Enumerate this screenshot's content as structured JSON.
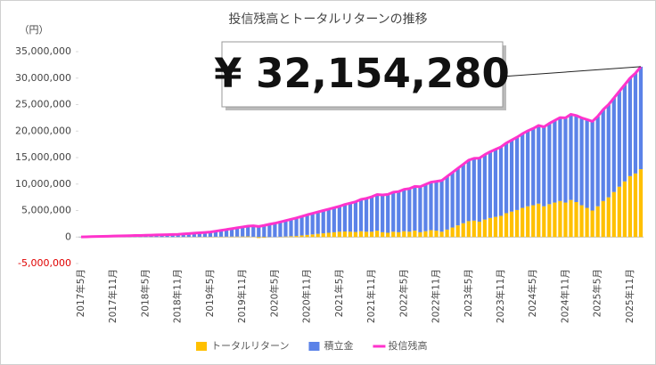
{
  "chart_data": {
    "type": "stacked-bar-line",
    "title": "投信残高とトータルリターンの推移",
    "y_unit": "（円）",
    "annotation": "¥ 32,154,280",
    "categories": [
      "2017年5月",
      null,
      null,
      null,
      null,
      null,
      "2017年11月",
      null,
      null,
      null,
      null,
      null,
      "2018年5月",
      null,
      null,
      null,
      null,
      null,
      "2018年11月",
      null,
      null,
      null,
      null,
      null,
      "2019年5月",
      null,
      null,
      null,
      null,
      null,
      "2019年11月",
      null,
      null,
      null,
      null,
      null,
      "2020年5月",
      null,
      null,
      null,
      null,
      null,
      "2020年11月",
      null,
      null,
      null,
      null,
      null,
      "2021年5月",
      null,
      null,
      null,
      null,
      null,
      "2021年11月",
      null,
      null,
      null,
      null,
      null,
      "2022年5月",
      null,
      null,
      null,
      null,
      null,
      "2022年11月",
      null,
      null,
      null,
      null,
      null,
      "2023年5月",
      null,
      null,
      null,
      null,
      null,
      "2023年11月",
      null,
      null,
      null,
      null,
      null,
      "2024年5月",
      null,
      null,
      null,
      null,
      null,
      "2024年11月",
      null,
      null,
      null,
      null,
      null,
      "2025年5月",
      null,
      null,
      null,
      null,
      null,
      "2025年11月",
      null,
      null
    ],
    "series": [
      {
        "name": "トータルリターン",
        "color": "#FFC000",
        "kind": "bar",
        "values": [
          0,
          0,
          0,
          0,
          5000,
          5000,
          5000,
          10000,
          5000,
          10000,
          10000,
          5000,
          10000,
          10000,
          5000,
          0,
          -5000,
          0,
          10000,
          15000,
          20000,
          25000,
          30000,
          35000,
          40000,
          50000,
          60000,
          70000,
          80000,
          90000,
          100000,
          120000,
          50000,
          -200000,
          -150000,
          -50000,
          0,
          50000,
          100000,
          150000,
          200000,
          300000,
          400000,
          500000,
          600000,
          700000,
          800000,
          900000,
          1000000,
          1050000,
          1000000,
          950000,
          1100000,
          1000000,
          1000000,
          1200000,
          900000,
          800000,
          1000000,
          900000,
          1100000,
          1000000,
          1200000,
          900000,
          1100000,
          1300000,
          1200000,
          1000000,
          1400000,
          1800000,
          2200000,
          2600000,
          3000000,
          3100000,
          2900000,
          3300000,
          3600000,
          3800000,
          4000000,
          4500000,
          4800000,
          5100000,
          5500000,
          5800000,
          6000000,
          6300000,
          5800000,
          6200000,
          6500000,
          6800000,
          6500000,
          7000000,
          6600000,
          6000000,
          5500000,
          5000000,
          5800000,
          6800000,
          7500000,
          8500000,
          9500000,
          10500000,
          11500000,
          12000000,
          12804280
        ]
      },
      {
        "name": "積立金",
        "color": "#5B82E8",
        "kind": "bar",
        "values": [
          25000,
          50000,
          75000,
          100000,
          125000,
          150000,
          175000,
          200000,
          225000,
          250000,
          275000,
          300000,
          325000,
          355000,
          385000,
          415000,
          445000,
          475000,
          505000,
          571000,
          637000,
          703000,
          769000,
          835000,
          900000,
          1050000,
          1200000,
          1350000,
          1500000,
          1650000,
          1800000,
          1933000,
          2066000,
          2200000,
          2333000,
          2466000,
          2600000,
          2800000,
          3000000,
          3200000,
          3400000,
          3600000,
          3800000,
          3967000,
          4133000,
          4300000,
          4467000,
          4633000,
          4800000,
          5100000,
          5400000,
          5700000,
          6000000,
          6300000,
          6600000,
          6817000,
          7033000,
          7250000,
          7467000,
          7683000,
          7900000,
          8133000,
          8367000,
          8600000,
          8833000,
          9067000,
          9300000,
          9667000,
          10033000,
          10400000,
          10767000,
          11133000,
          11500000,
          11750000,
          12000000,
          12250000,
          12500000,
          12750000,
          13000000,
          13250000,
          13500000,
          13750000,
          14000000,
          14250000,
          14500000,
          14750000,
          15000000,
          15250000,
          15500000,
          15750000,
          16000000,
          16167000,
          16333000,
          16500000,
          16667000,
          16833000,
          17000000,
          17250000,
          17500000,
          17750000,
          18000000,
          18250000,
          18500000,
          18925000,
          19350000
        ]
      },
      {
        "name": "投信残高",
        "color": "#FF33CC",
        "kind": "line",
        "values": [
          25000,
          50000,
          75000,
          100000,
          130000,
          155000,
          180000,
          210000,
          230000,
          260000,
          285000,
          305000,
          335000,
          365000,
          390000,
          415000,
          440000,
          475000,
          515000,
          586000,
          657000,
          728000,
          799000,
          870000,
          940000,
          1100000,
          1260000,
          1420000,
          1580000,
          1740000,
          1900000,
          2053000,
          2116000,
          2000000,
          2183000,
          2416000,
          2600000,
          2850000,
          3100000,
          3350000,
          3600000,
          3900000,
          4200000,
          4467000,
          4733000,
          5000000,
          5267000,
          5533000,
          5800000,
          6150000,
          6400000,
          6650000,
          7100000,
          7300000,
          7600000,
          8017000,
          7933000,
          8050000,
          8467000,
          8583000,
          9000000,
          9133000,
          9567000,
          9500000,
          9933000,
          10367000,
          10500000,
          10667000,
          11433000,
          12200000,
          12967000,
          13733000,
          14500000,
          14850000,
          14900000,
          15550000,
          16100000,
          16550000,
          17000000,
          17750000,
          18300000,
          18850000,
          19500000,
          20050000,
          20500000,
          21050000,
          20800000,
          21450000,
          22000000,
          22550000,
          22500000,
          23167000,
          22933000,
          22500000,
          22167000,
          21833000,
          22800000,
          24050000,
          25000000,
          26250000,
          27500000,
          28750000,
          30000000,
          30925000,
          32154280
        ]
      }
    ],
    "ylim": [
      -5000000,
      35000000
    ],
    "yticks": [
      {
        "value": -5000000,
        "label": "-5,000,000"
      },
      0,
      {
        "value": 5000000,
        "label": "5,000,000"
      },
      {
        "value": 10000000,
        "label": "10,000,000"
      },
      {
        "value": 15000000,
        "label": "15,000,000"
      },
      {
        "value": 20000000,
        "label": "20,000,000"
      },
      {
        "value": 25000000,
        "label": "25,000,000"
      },
      {
        "value": 30000000,
        "label": "30,000,000"
      },
      {
        "value": 35000000,
        "label": "35,000,000"
      }
    ],
    "grid": false
  }
}
